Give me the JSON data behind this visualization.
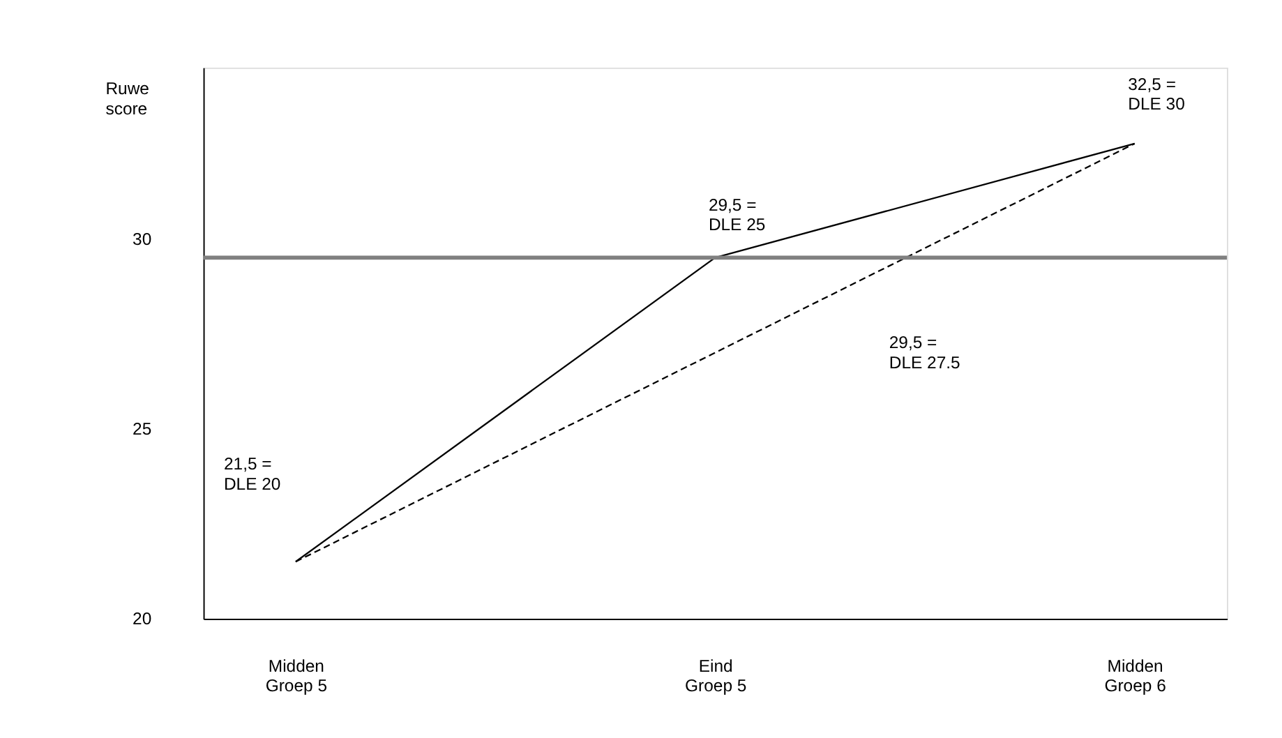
{
  "chart_data": {
    "type": "line",
    "ylabel": "Ruwe\nscore",
    "categories": [
      "Midden\nGroep 5",
      "Eind\nGroep 5",
      "Midden\nGroep 6"
    ],
    "series": [
      {
        "color": "#000000",
        "values": [
          21.5,
          29.5,
          32.5
        ],
        "line_style": "solid"
      },
      {
        "color": "#000000",
        "values": [
          21.5,
          27,
          32.5
        ],
        "line_style": "dashed"
      }
    ],
    "ylim": [
      20,
      34.5
    ],
    "yticks": [
      20,
      25,
      30
    ],
    "grid": false,
    "marker": "none",
    "ref_lines": [
      {
        "axis": "y",
        "value": 29.5,
        "color": "#808080"
      }
    ],
    "annotations": [
      "21,5 =\nDLE 20",
      {
        "text": "29,5 =\nDLE 25",
        "x": "Eind\nGroep 5",
        "y": 29.5
      },
      {
        "text": "32,5 =\nDLE 30",
        "x": "Midden\nGroep 6",
        "y": 32.5
      },
      "29,5 =\nDLE 27.5"
    ]
  }
}
